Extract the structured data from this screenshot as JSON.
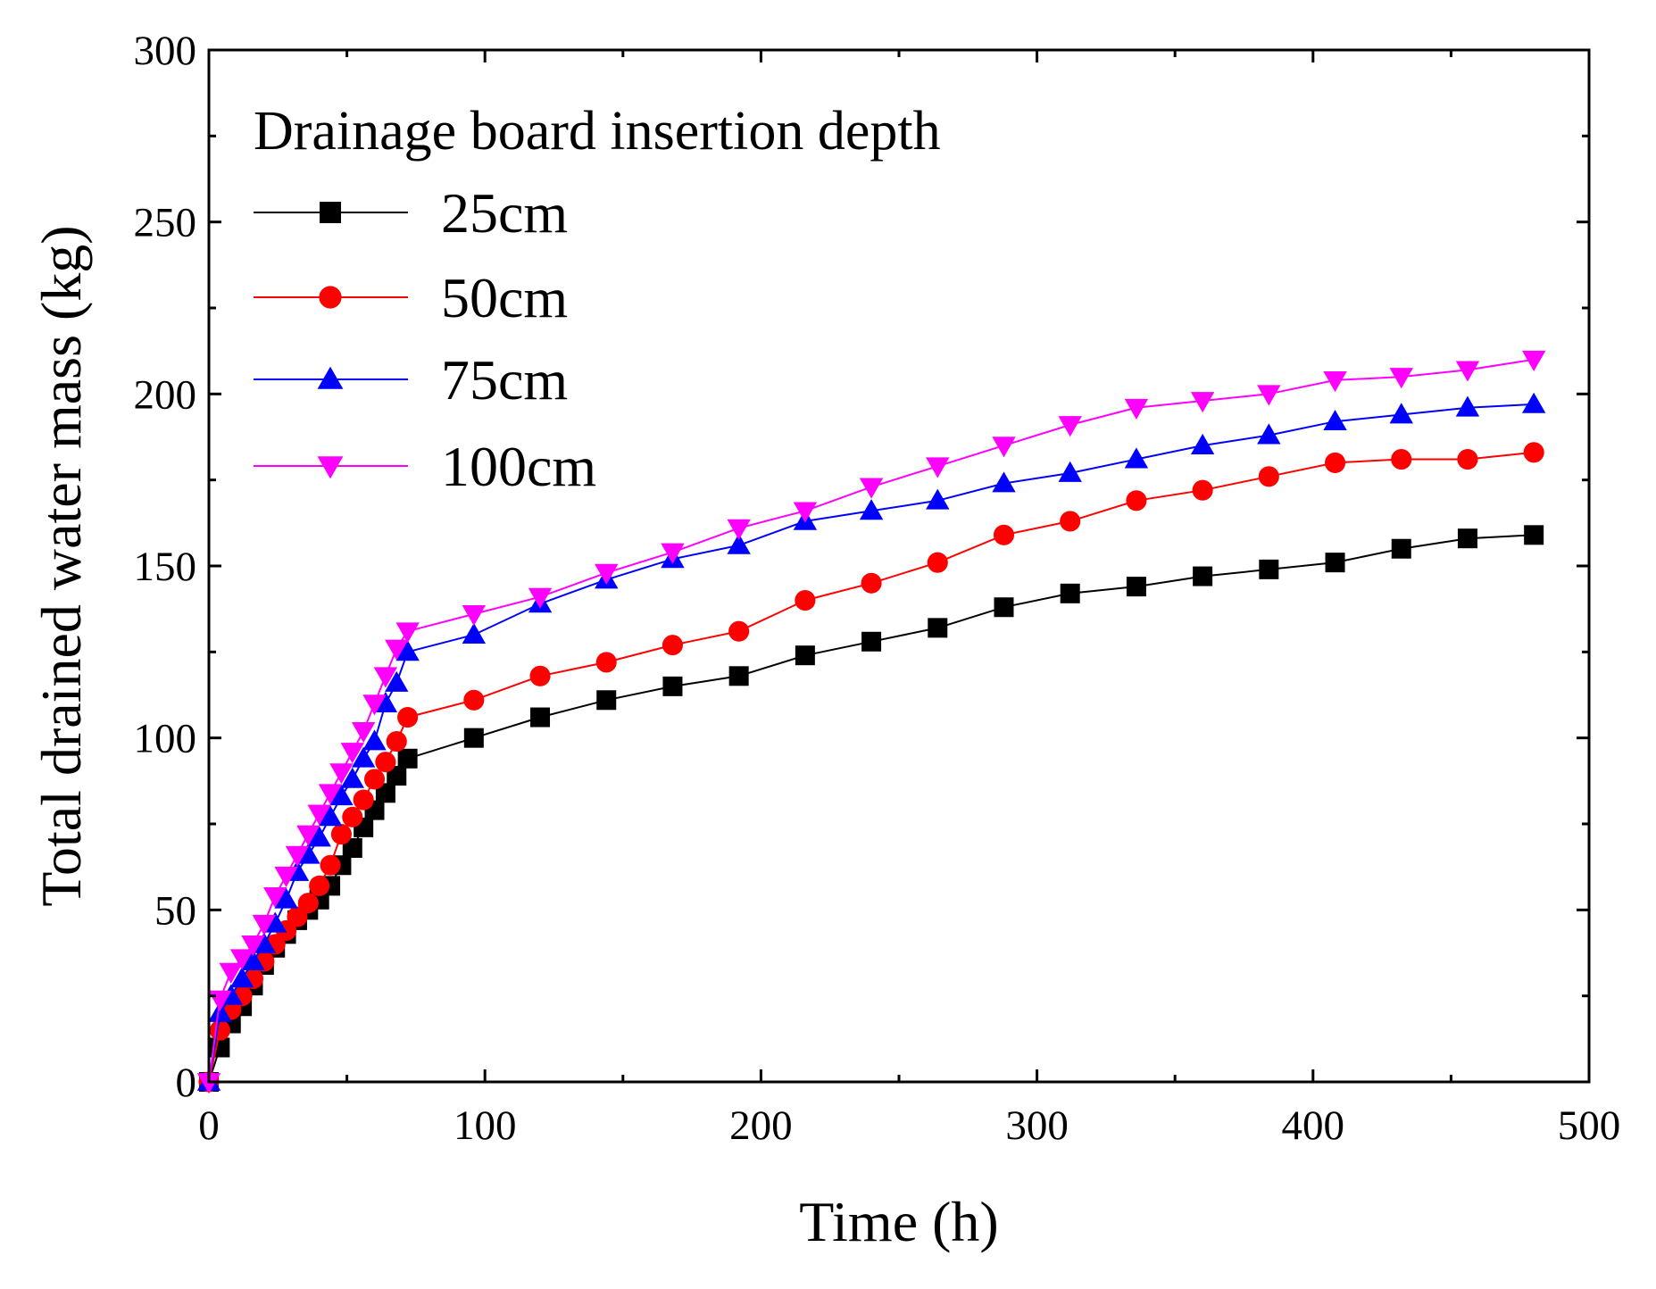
{
  "chart_data": {
    "type": "line",
    "xlabel": "Time (h)",
    "ylabel": "Total drained water mass (kg)",
    "xlim": [
      0,
      500
    ],
    "ylim": [
      0,
      300
    ],
    "xticks": [
      0,
      100,
      200,
      300,
      400,
      500
    ],
    "yticks": [
      0,
      50,
      100,
      150,
      200,
      250,
      300
    ],
    "grid": false,
    "legend": {
      "title": "Drainage board insertion depth",
      "position": "top-left"
    },
    "series": [
      {
        "name": "25cm",
        "color": "#000000",
        "marker": "square",
        "x": [
          0,
          4,
          8,
          12,
          16,
          20,
          24,
          28,
          32,
          36,
          40,
          44,
          48,
          52,
          56,
          60,
          64,
          68,
          72,
          96,
          120,
          144,
          168,
          192,
          216,
          240,
          264,
          288,
          312,
          336,
          360,
          384,
          408,
          432,
          456,
          480
        ],
        "values": [
          0,
          10,
          17,
          22,
          28,
          34,
          39,
          43,
          47,
          50,
          53,
          57,
          63,
          68,
          74,
          79,
          84,
          89,
          94,
          100,
          106,
          111,
          115,
          118,
          124,
          128,
          132,
          138,
          142,
          144,
          147,
          149,
          151,
          155,
          158,
          159
        ]
      },
      {
        "name": "50cm",
        "color": "#ff0000",
        "marker": "circle",
        "x": [
          0,
          4,
          8,
          12,
          16,
          20,
          24,
          28,
          32,
          36,
          40,
          44,
          48,
          52,
          56,
          60,
          64,
          68,
          72,
          96,
          120,
          144,
          168,
          192,
          216,
          240,
          264,
          288,
          312,
          336,
          360,
          384,
          408,
          432,
          456,
          480
        ],
        "values": [
          0,
          15,
          21,
          25,
          30,
          35,
          40,
          44,
          48,
          52,
          57,
          63,
          72,
          77,
          82,
          88,
          93,
          99,
          106,
          111,
          118,
          122,
          127,
          131,
          140,
          145,
          151,
          159,
          163,
          169,
          172,
          176,
          180,
          181,
          181,
          183
        ]
      },
      {
        "name": "75cm",
        "color": "#0000ff",
        "marker": "triangle-up",
        "x": [
          0,
          4,
          8,
          12,
          16,
          20,
          24,
          28,
          32,
          36,
          40,
          44,
          48,
          52,
          56,
          60,
          64,
          68,
          72,
          96,
          120,
          144,
          168,
          192,
          216,
          240,
          264,
          288,
          312,
          336,
          360,
          384,
          408,
          432,
          456,
          480
        ],
        "values": [
          0,
          20,
          25,
          30,
          35,
          40,
          46,
          53,
          61,
          66,
          71,
          77,
          83,
          88,
          94,
          99,
          110,
          116,
          125,
          130,
          139,
          146,
          152,
          156,
          163,
          166,
          169,
          174,
          177,
          181,
          185,
          188,
          192,
          194,
          196,
          197
        ]
      },
      {
        "name": "100cm",
        "color": "#ff00ff",
        "marker": "triangle-down",
        "x": [
          0,
          4,
          8,
          12,
          16,
          20,
          24,
          28,
          32,
          36,
          40,
          44,
          48,
          52,
          56,
          60,
          64,
          68,
          72,
          96,
          120,
          144,
          168,
          192,
          216,
          240,
          264,
          288,
          312,
          336,
          360,
          384,
          408,
          432,
          456,
          480
        ],
        "values": [
          0,
          24,
          32,
          36,
          40,
          46,
          54,
          60,
          66,
          72,
          78,
          84,
          90,
          96,
          102,
          110,
          118,
          126,
          131,
          136,
          141,
          148,
          154,
          161,
          166,
          173,
          179,
          185,
          191,
          196,
          198,
          200,
          204,
          205,
          207,
          210
        ]
      }
    ]
  }
}
